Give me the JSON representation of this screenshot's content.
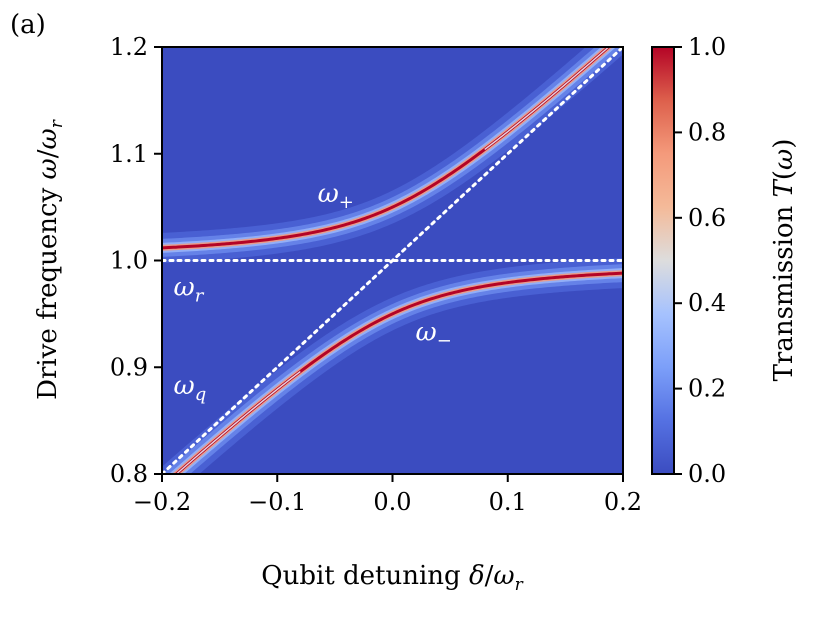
{
  "panel_label": "(a)",
  "chart_data": {
    "type": "heatmap",
    "xlabel": "Qubit detuning δ/ω_r",
    "ylabel": "Drive frequency ω/ω_r",
    "xlim": [
      -0.2,
      0.2
    ],
    "ylim": [
      0.8,
      1.2
    ],
    "x_ticks": [
      -0.2,
      -0.1,
      0.0,
      0.1,
      0.2
    ],
    "x_tick_labels": [
      "−0.2",
      "−0.1",
      "0.0",
      "0.1",
      "0.2"
    ],
    "y_ticks": [
      0.8,
      0.9,
      1.0,
      1.1,
      1.2
    ],
    "y_tick_labels": [
      "0.8",
      "0.9",
      "1.0",
      "1.1",
      "1.2"
    ],
    "colorbar": {
      "label": "Transmission T(ω)",
      "range": [
        0.0,
        1.0
      ],
      "ticks": [
        0.0,
        0.2,
        0.4,
        0.6,
        0.8,
        1.0
      ],
      "tick_labels": [
        "0.0",
        "0.2",
        "0.4",
        "0.6",
        "0.8",
        "1.0"
      ],
      "colormap": "coolwarm"
    },
    "model": {
      "resonator_frequency": 1.0,
      "coupling_g": 0.05,
      "background_transmission": 0.0
    },
    "branches": [
      {
        "name": "ω+",
        "label": "ω+",
        "x": [
          -0.2,
          -0.15,
          -0.1,
          -0.05,
          0.0,
          0.05,
          0.1,
          0.15,
          0.2
        ],
        "y": [
          1.012,
          1.016,
          1.024,
          1.043,
          1.05,
          1.093,
          1.124,
          1.161,
          1.2
        ]
      },
      {
        "name": "ω−",
        "label": "ω−",
        "x": [
          -0.2,
          -0.15,
          -0.1,
          -0.05,
          0.0,
          0.05,
          0.1,
          0.15,
          0.2
        ],
        "y": [
          0.8,
          0.839,
          0.876,
          0.907,
          0.95,
          0.957,
          0.976,
          0.984,
          0.988
        ]
      }
    ],
    "reference_lines": [
      {
        "name": "ω_r",
        "label": "ω_r",
        "style": "dotted",
        "x": [
          -0.2,
          0.2
        ],
        "y": [
          1.0,
          1.0
        ]
      },
      {
        "name": "ω_q",
        "label": "ω_q",
        "style": "dotted",
        "x": [
          -0.2,
          0.2
        ],
        "y": [
          0.8,
          1.2
        ]
      }
    ],
    "annotations": [
      {
        "id": "plus",
        "base": "ω",
        "sub": "+",
        "x": -0.065,
        "y": 1.055
      },
      {
        "id": "minus",
        "base": "ω",
        "sub": "−",
        "x": 0.02,
        "y": 0.925
      },
      {
        "id": "res",
        "base": "ω",
        "sub": "r",
        "x": -0.19,
        "y": 0.967
      },
      {
        "id": "qubit",
        "base": "ω",
        "sub": "q",
        "x": -0.19,
        "y": 0.875
      }
    ],
    "colors": {
      "background": "#3b4cc0",
      "peak": "#b40426",
      "reference": "#ffffff"
    }
  }
}
